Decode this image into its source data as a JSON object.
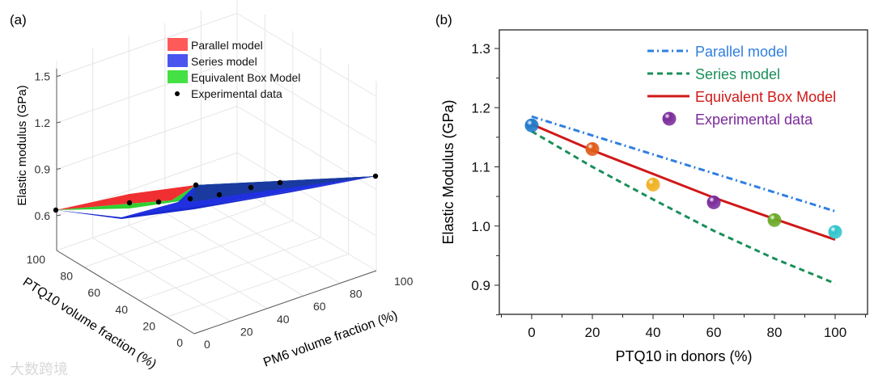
{
  "chart_data": [
    {
      "panel_label": "(a)",
      "type": "surface",
      "zlabel": "Elastic modulus (GPa)",
      "xlabel": "PTQ10 volume fraction (%)",
      "ylabel": "PM6 volume fraction (%)",
      "z_ticks": [
        "0.6",
        "0.9",
        "1.2",
        "1.5"
      ],
      "x_ticks": [
        "100",
        "80",
        "60",
        "40",
        "20",
        "0"
      ],
      "y_ticks": [
        "0",
        "20",
        "40",
        "60",
        "80",
        "100"
      ],
      "legend": [
        {
          "label": "Parallel model",
          "color": "#ff5a5a"
        },
        {
          "label": "Series model",
          "color": "#4a55f0"
        },
        {
          "label": "Equivalent Box Model",
          "color": "#44e044"
        },
        {
          "label": "Experimental data",
          "color": "#000000"
        }
      ],
      "legend_position": "top-center",
      "grid": true
    },
    {
      "panel_label": "(b)",
      "type": "line",
      "xlabel": "PTQ10 in donors (%)",
      "ylabel": "Elastic Modulus (GPa)",
      "xlim": [
        -10,
        110
      ],
      "ylim": [
        0.85,
        1.33
      ],
      "x_ticks": [
        "0",
        "20",
        "40",
        "60",
        "80",
        "100"
      ],
      "y_ticks": [
        "0.9",
        "1.0",
        "1.1",
        "1.2",
        "1.3"
      ],
      "x": [
        0,
        20,
        40,
        60,
        80,
        100
      ],
      "series": [
        {
          "name": "Parallel model",
          "style": "dash-dot",
          "color": "#2f7fe0",
          "values": [
            1.185,
            1.153,
            1.121,
            1.089,
            1.057,
            1.025
          ]
        },
        {
          "name": "Series model",
          "style": "dash",
          "color": "#1a8f5a",
          "values": [
            1.16,
            1.1,
            1.045,
            0.992,
            0.945,
            0.903
          ]
        },
        {
          "name": "Equivalent Box Model",
          "style": "solid",
          "color": "#d01818",
          "values": [
            1.172,
            1.128,
            1.088,
            1.048,
            1.012,
            0.977
          ]
        },
        {
          "name": "Experimental data",
          "style": "sphere",
          "color": "#7a2a9a",
          "values": [
            1.17,
            1.13,
            1.07,
            1.04,
            1.01,
            0.99
          ],
          "point_colors": [
            "#1f78c8",
            "#e05a18",
            "#f0b020",
            "#7a2a9a",
            "#6aaa28",
            "#30c4cc"
          ]
        }
      ],
      "legend_position": "top-right",
      "grid": false
    }
  ],
  "watermark": "大数跨境"
}
